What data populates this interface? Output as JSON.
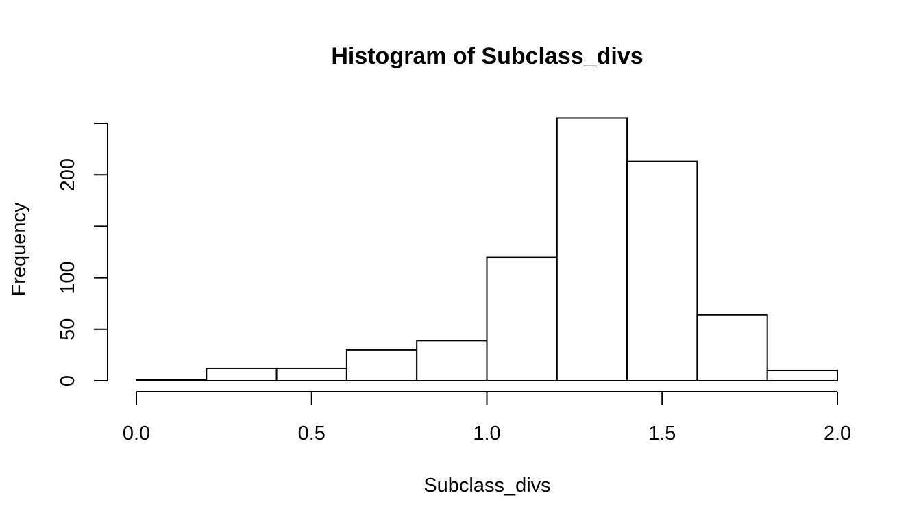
{
  "chart_data": {
    "type": "bar",
    "title": "Histogram of Subclass_divs",
    "xlabel": "Subclass_divs",
    "ylabel": "Frequency",
    "bins": [
      {
        "start": 0.0,
        "end": 0.2,
        "count": 1
      },
      {
        "start": 0.2,
        "end": 0.4,
        "count": 12
      },
      {
        "start": 0.4,
        "end": 0.6,
        "count": 12
      },
      {
        "start": 0.6,
        "end": 0.8,
        "count": 30
      },
      {
        "start": 0.8,
        "end": 1.0,
        "count": 39
      },
      {
        "start": 1.0,
        "end": 1.2,
        "count": 120
      },
      {
        "start": 1.2,
        "end": 1.4,
        "count": 255
      },
      {
        "start": 1.4,
        "end": 1.6,
        "count": 213
      },
      {
        "start": 1.6,
        "end": 1.8,
        "count": 64
      },
      {
        "start": 1.8,
        "end": 2.0,
        "count": 10
      }
    ],
    "xlim": [
      0,
      2
    ],
    "ylim": [
      0,
      250
    ],
    "x_ticks": [
      0.0,
      0.5,
      1.0,
      1.5,
      2.0
    ],
    "x_tick_labels": [
      "0.0",
      "0.5",
      "1.0",
      "1.5",
      "2.0"
    ],
    "y_ticks": [
      0,
      50,
      100,
      150,
      200,
      250
    ],
    "y_tick_labels": [
      "0",
      "50",
      "100",
      "",
      "200",
      ""
    ],
    "grid": false,
    "color": "#ffffff",
    "edge_color": "#000000"
  }
}
